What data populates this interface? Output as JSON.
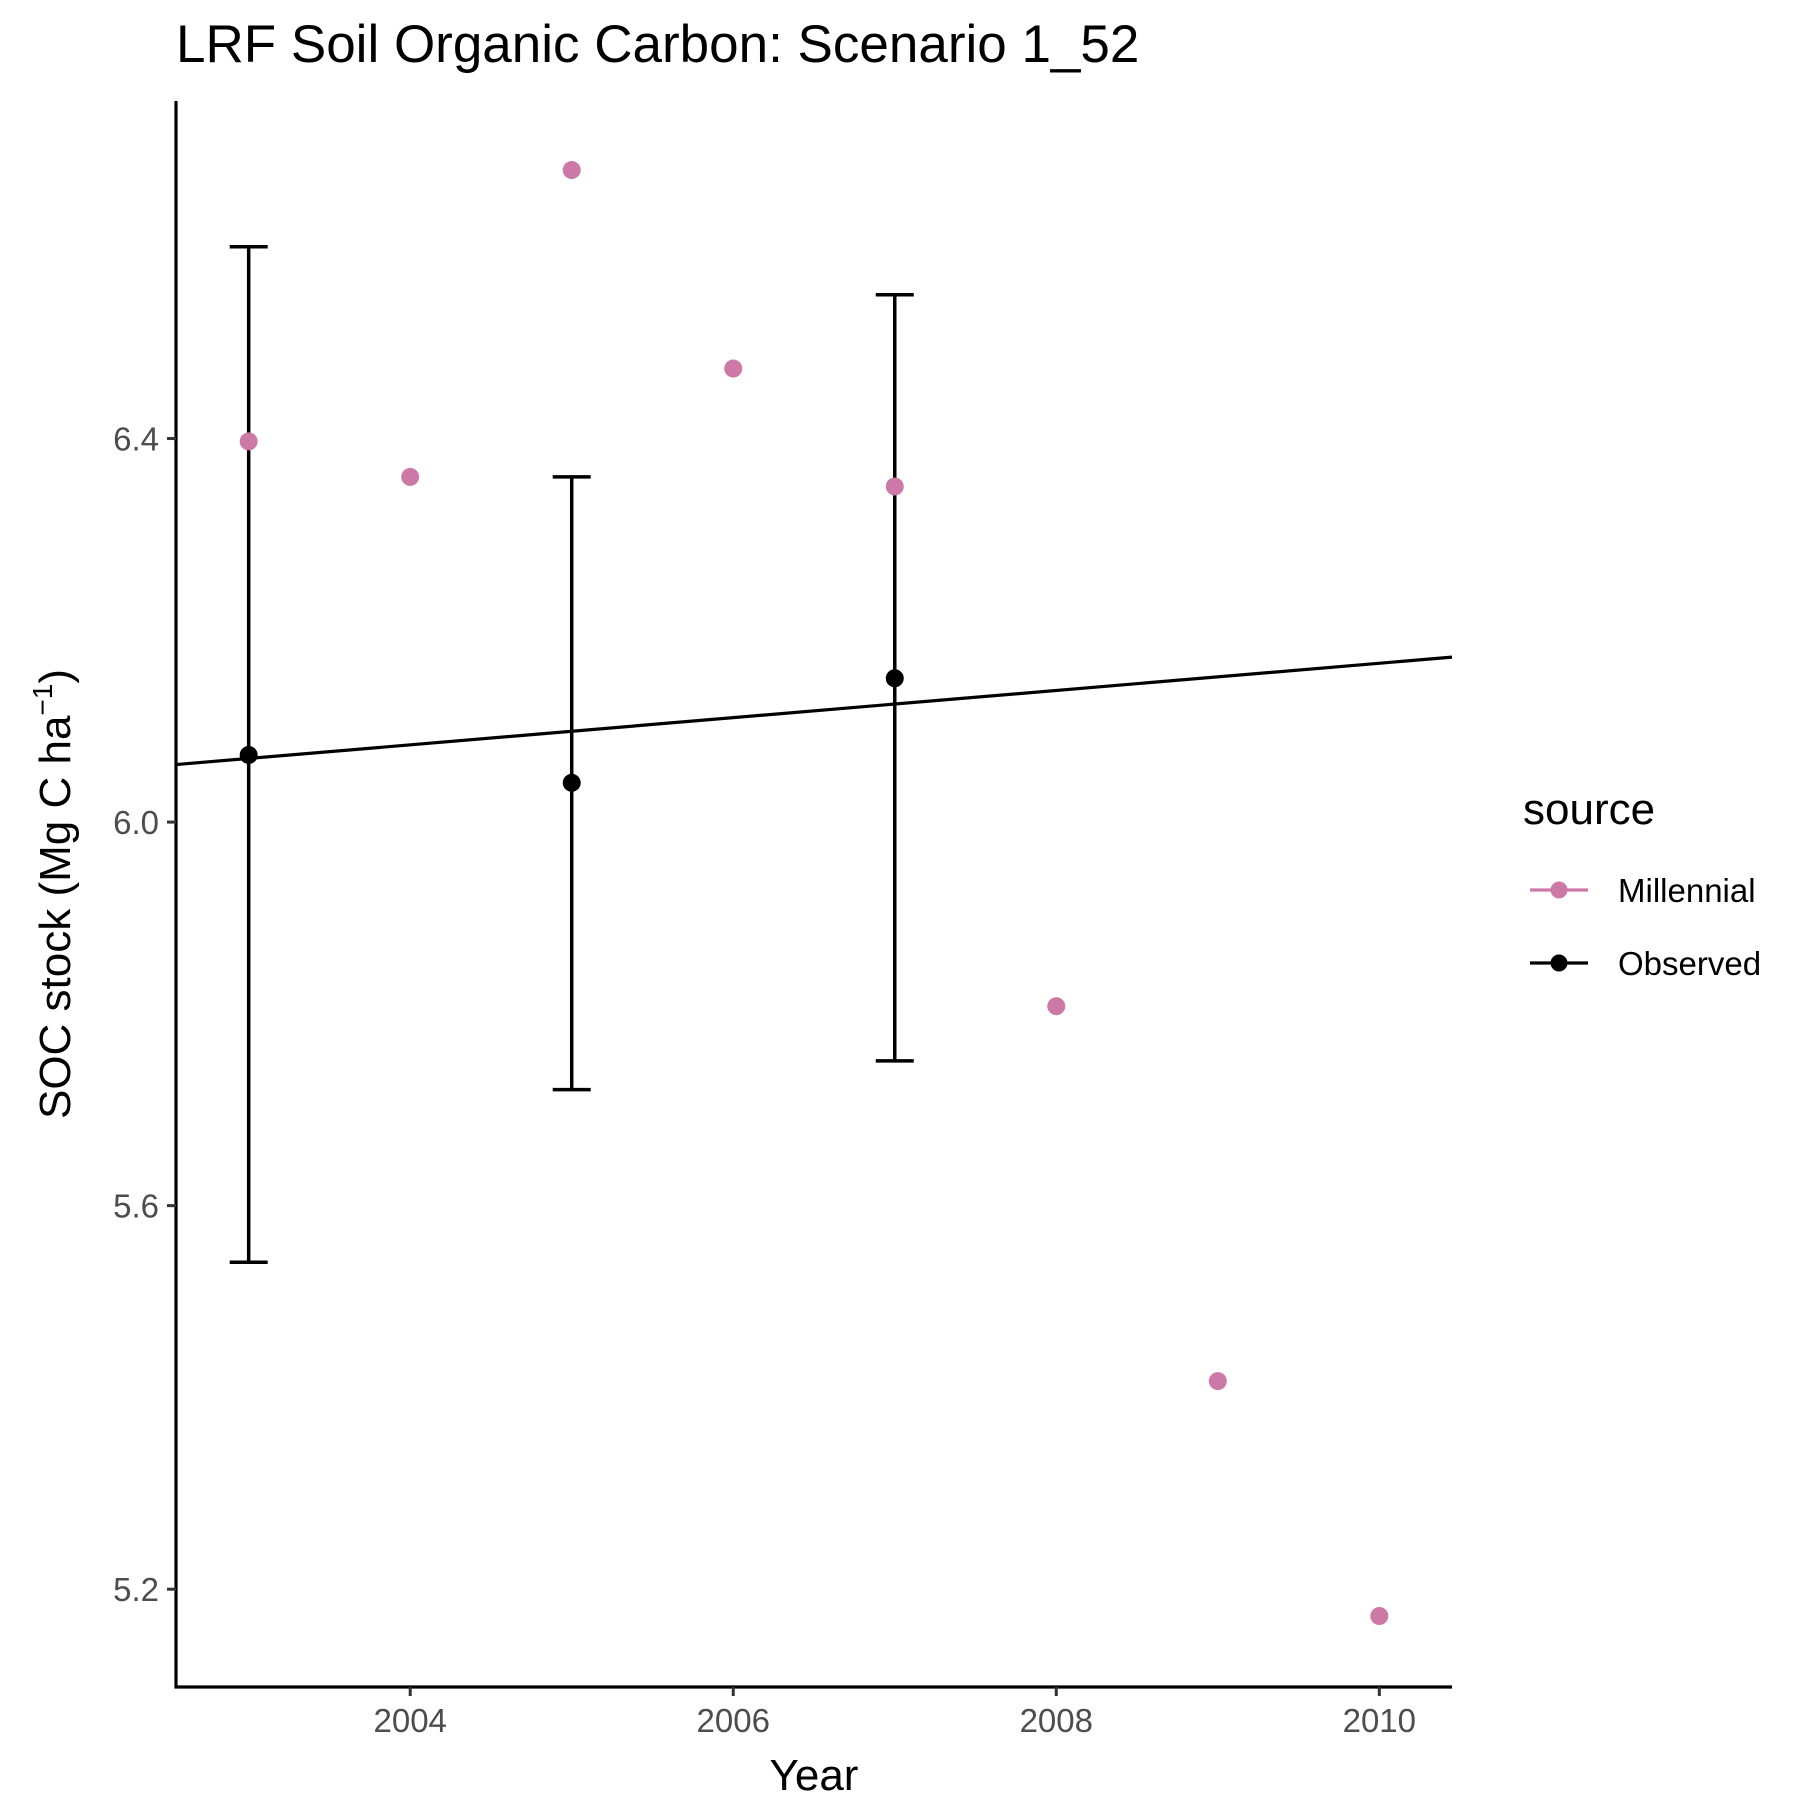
{
  "chart_data": {
    "type": "scatter",
    "title": "LRF Soil Organic Carbon: Scenario  1_52",
    "xlabel": "Year",
    "ylabel": "SOC stock (Mg C ha",
    "ylabel_superscript": "−1",
    "ylabel_suffix": ")",
    "xlim": [
      2002.55,
      2010.45
    ],
    "ylim": [
      5.098,
      6.752
    ],
    "x_ticks": [
      2004,
      2006,
      2008,
      2010
    ],
    "x_tick_labels": [
      "2004",
      "2006",
      "2008",
      "2010"
    ],
    "y_ticks": [
      5.2,
      5.6,
      6.0,
      6.4
    ],
    "y_tick_labels": [
      "5.2",
      "5.6",
      "6.0",
      "6.4"
    ],
    "grid": false,
    "legend": {
      "title": "source",
      "position": "right",
      "entries": [
        {
          "label": "Millennial",
          "color": "#cc79a7"
        },
        {
          "label": "Observed",
          "color": "#000000"
        }
      ]
    },
    "series": [
      {
        "name": "Millennial",
        "color": "#cc79a7",
        "points": [
          {
            "x": 2003,
            "y": 6.397
          },
          {
            "x": 2004,
            "y": 6.36
          },
          {
            "x": 2005,
            "y": 6.68
          },
          {
            "x": 2006,
            "y": 6.473
          },
          {
            "x": 2007,
            "y": 6.35
          },
          {
            "x": 2008,
            "y": 5.808
          },
          {
            "x": 2009,
            "y": 5.417
          },
          {
            "x": 2010,
            "y": 5.172
          }
        ]
      },
      {
        "name": "Observed",
        "color": "#000000",
        "points": [
          {
            "x": 2003,
            "y": 6.07,
            "ymin": 5.541,
            "ymax": 6.6
          },
          {
            "x": 2005,
            "y": 6.041,
            "ymin": 5.721,
            "ymax": 6.36
          },
          {
            "x": 2007,
            "y": 6.15,
            "ymin": 5.751,
            "ymax": 6.55
          }
        ]
      }
    ],
    "trend_line": {
      "color": "#000000",
      "x": [
        2002.55,
        2010.45
      ],
      "y": [
        6.06,
        6.172
      ]
    }
  }
}
